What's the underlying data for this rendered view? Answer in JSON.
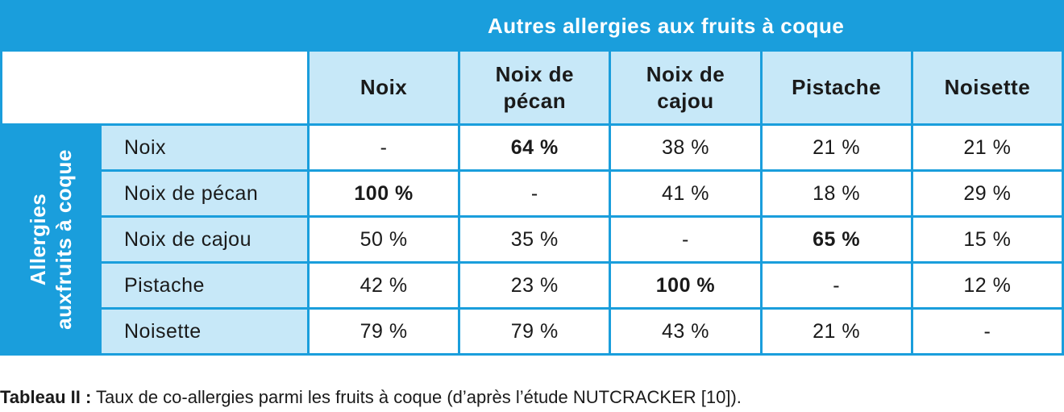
{
  "table": {
    "title": "Autres allergies aux fruits à coque",
    "row_group_label_line1": "Allergies",
    "row_group_label_line2": "auxfruits à coque",
    "columns": [
      {
        "line1": "Noix",
        "line2": ""
      },
      {
        "line1": "Noix de",
        "line2": "pécan"
      },
      {
        "line1": "Noix de",
        "line2": "cajou"
      },
      {
        "line1": "Pistache",
        "line2": ""
      },
      {
        "line1": "Noisette",
        "line2": ""
      }
    ],
    "rows": [
      {
        "label": "Noix",
        "cells": [
          {
            "value": "-",
            "bold": false
          },
          {
            "value": "64 %",
            "bold": true
          },
          {
            "value": "38 %",
            "bold": false
          },
          {
            "value": "21 %",
            "bold": false
          },
          {
            "value": "21 %",
            "bold": false
          }
        ]
      },
      {
        "label": "Noix de pécan",
        "cells": [
          {
            "value": "100 %",
            "bold": true
          },
          {
            "value": "-",
            "bold": false
          },
          {
            "value": "41 %",
            "bold": false
          },
          {
            "value": "18 %",
            "bold": false
          },
          {
            "value": "29 %",
            "bold": false
          }
        ]
      },
      {
        "label": "Noix de cajou",
        "cells": [
          {
            "value": "50 %",
            "bold": false
          },
          {
            "value": "35 %",
            "bold": false
          },
          {
            "value": "-",
            "bold": false
          },
          {
            "value": "65 %",
            "bold": true
          },
          {
            "value": "15 %",
            "bold": false
          }
        ]
      },
      {
        "label": "Pistache",
        "cells": [
          {
            "value": "42 %",
            "bold": false
          },
          {
            "value": "23 %",
            "bold": false
          },
          {
            "value": "100 %",
            "bold": true
          },
          {
            "value": "-",
            "bold": false
          },
          {
            "value": "12 %",
            "bold": false
          }
        ]
      },
      {
        "label": "Noisette",
        "cells": [
          {
            "value": "79 %",
            "bold": false
          },
          {
            "value": "79 %",
            "bold": false
          },
          {
            "value": "43 %",
            "bold": false
          },
          {
            "value": "21 %",
            "bold": false
          },
          {
            "value": "-",
            "bold": false
          }
        ]
      }
    ]
  },
  "caption": {
    "label": "Tableau II :",
    "text": " Taux de co-allergies parmi les fruits à coque (d’après l’étude NUTCRACKER [10])."
  },
  "colors": {
    "header_blue": "#1a9edc",
    "light_blue": "#c7e8f8",
    "white": "#ffffff"
  }
}
